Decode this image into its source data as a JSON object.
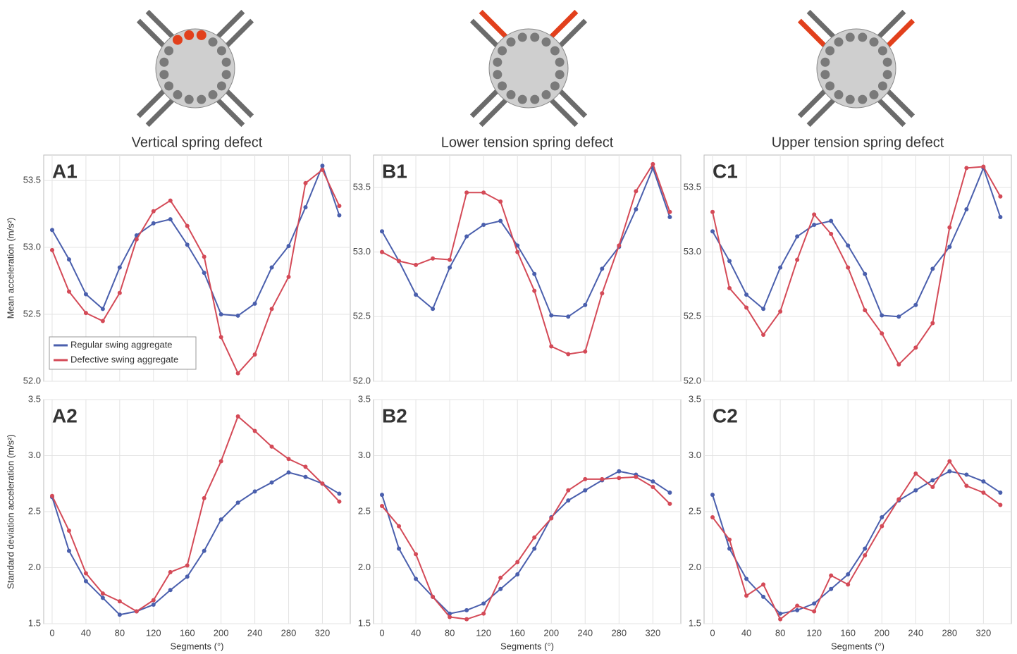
{
  "chart_data": [
    {
      "type": "line",
      "title": "Vertical spring defect",
      "panel_label": "A1",
      "ylabel": "Mean acceleration (m/s²)",
      "legend": "lower left",
      "grid": true,
      "x": [
        0,
        20,
        40,
        60,
        80,
        100,
        120,
        140,
        160,
        180,
        200,
        220,
        240,
        260,
        280,
        300,
        320,
        340
      ],
      "xlim": [
        -10,
        353
      ],
      "xticks": [
        0,
        40,
        80,
        120,
        160,
        200,
        240,
        280,
        320
      ],
      "ylim": [
        52.0,
        53.69
      ],
      "yticks": [
        {
          "value": 52,
          "label": "52.0"
        },
        52.5,
        {
          "value": 53,
          "label": "53.0"
        },
        53.5
      ],
      "series": [
        {
          "name": "Regular swing aggregate",
          "color": "#4a5fad",
          "values": [
            53.13,
            52.91,
            52.65,
            52.54,
            52.85,
            53.09,
            53.18,
            53.21,
            53.02,
            52.81,
            52.5,
            52.49,
            52.58,
            52.85,
            53.01,
            53.3,
            53.61,
            53.24
          ]
        },
        {
          "name": "Defective swing aggregate",
          "color": "#d44a57",
          "values": [
            52.98,
            52.67,
            52.51,
            52.45,
            52.66,
            53.06,
            53.27,
            53.35,
            53.16,
            52.93,
            52.33,
            52.06,
            52.2,
            52.54,
            52.78,
            53.48,
            53.58,
            53.31
          ]
        }
      ]
    },
    {
      "type": "line",
      "title": "Lower tension spring defect",
      "panel_label": "B1",
      "grid": true,
      "x": [
        0,
        20,
        40,
        60,
        80,
        100,
        120,
        140,
        160,
        180,
        200,
        220,
        240,
        260,
        280,
        300,
        320,
        340
      ],
      "xlim": [
        -10,
        353
      ],
      "xticks": [
        0,
        40,
        80,
        120,
        160,
        200,
        240,
        280,
        320
      ],
      "ylim": [
        52.0,
        53.75
      ],
      "yticks": [
        {
          "value": 52,
          "label": "52.0"
        },
        52.5,
        {
          "value": 53,
          "label": "53.0"
        },
        53.5
      ],
      "series": [
        {
          "color": "#4a5fad",
          "values": [
            53.16,
            52.93,
            52.67,
            52.56,
            52.88,
            53.12,
            53.21,
            53.24,
            53.05,
            52.83,
            52.51,
            52.5,
            52.59,
            52.87,
            53.04,
            53.33,
            53.65,
            53.27
          ]
        },
        {
          "color": "#d44a57",
          "values": [
            53.0,
            52.93,
            52.9,
            52.95,
            52.94,
            53.46,
            53.46,
            53.39,
            53.0,
            52.7,
            52.27,
            52.21,
            52.23,
            52.68,
            53.05,
            53.47,
            53.68,
            53.31
          ]
        }
      ]
    },
    {
      "type": "line",
      "title": "Upper tension spring defect",
      "panel_label": "C1",
      "grid": true,
      "x": [
        0,
        20,
        40,
        60,
        80,
        100,
        120,
        140,
        160,
        180,
        200,
        220,
        240,
        260,
        280,
        300,
        320,
        340
      ],
      "xlim": [
        -10,
        353
      ],
      "xticks": [
        0,
        40,
        80,
        120,
        160,
        200,
        240,
        280,
        320
      ],
      "ylim": [
        52.0,
        53.75
      ],
      "yticks": [
        {
          "value": 52,
          "label": "52.0"
        },
        52.5,
        {
          "value": 53,
          "label": "53.0"
        },
        53.5
      ],
      "series": [
        {
          "color": "#4a5fad",
          "values": [
            53.16,
            52.93,
            52.67,
            52.56,
            52.88,
            53.12,
            53.21,
            53.24,
            53.05,
            52.83,
            52.51,
            52.5,
            52.59,
            52.87,
            53.04,
            53.33,
            53.65,
            53.27
          ]
        },
        {
          "color": "#d44a57",
          "values": [
            53.31,
            52.72,
            52.57,
            52.36,
            52.54,
            52.94,
            53.29,
            53.14,
            52.88,
            52.55,
            52.37,
            52.13,
            52.26,
            52.45,
            53.19,
            53.65,
            53.66,
            53.43
          ]
        }
      ]
    },
    {
      "type": "line",
      "panel_label": "A2",
      "ylabel": "Standard deviation acceleration (m/s²)",
      "xlabel": "Segments (°)",
      "grid": true,
      "x": [
        0,
        20,
        40,
        60,
        80,
        100,
        120,
        140,
        160,
        180,
        200,
        220,
        240,
        260,
        280,
        300,
        320,
        340
      ],
      "xlim": [
        -10,
        353
      ],
      "xticks": [
        0,
        40,
        80,
        120,
        160,
        200,
        240,
        280,
        320
      ],
      "ylim": [
        1.5,
        3.5
      ],
      "yticks": [
        1.5,
        {
          "value": 2,
          "label": "2.0"
        },
        2.5,
        {
          "value": 3,
          "label": "3.0"
        },
        3.5
      ],
      "series": [
        {
          "color": "#4a5fad",
          "values": [
            2.63,
            2.15,
            1.88,
            1.73,
            1.58,
            1.61,
            1.67,
            1.8,
            1.92,
            2.15,
            2.43,
            2.58,
            2.68,
            2.76,
            2.85,
            2.81,
            2.75,
            2.66
          ]
        },
        {
          "color": "#d44a57",
          "values": [
            2.64,
            2.33,
            1.95,
            1.77,
            1.7,
            1.61,
            1.71,
            1.96,
            2.02,
            2.62,
            2.95,
            3.35,
            3.22,
            3.08,
            2.97,
            2.9,
            2.75,
            2.59
          ]
        }
      ]
    },
    {
      "type": "line",
      "panel_label": "B2",
      "xlabel": "Segments (°)",
      "grid": true,
      "x": [
        0,
        20,
        40,
        60,
        80,
        100,
        120,
        140,
        160,
        180,
        200,
        220,
        240,
        260,
        280,
        300,
        320,
        340
      ],
      "xlim": [
        -10,
        353
      ],
      "xticks": [
        0,
        40,
        80,
        120,
        160,
        200,
        240,
        280,
        320
      ],
      "ylim": [
        1.5,
        3.5
      ],
      "yticks": [
        1.5,
        {
          "value": 2,
          "label": "2.0"
        },
        2.5,
        {
          "value": 3,
          "label": "3.0"
        },
        3.5
      ],
      "series": [
        {
          "color": "#4a5fad",
          "values": [
            2.65,
            2.17,
            1.9,
            1.74,
            1.59,
            1.62,
            1.68,
            1.81,
            1.94,
            2.17,
            2.45,
            2.6,
            2.69,
            2.78,
            2.86,
            2.83,
            2.77,
            2.67
          ]
        },
        {
          "color": "#d44a57",
          "values": [
            2.55,
            2.37,
            2.12,
            1.74,
            1.56,
            1.54,
            1.59,
            1.91,
            2.05,
            2.27,
            2.44,
            2.69,
            2.79,
            2.79,
            2.8,
            2.81,
            2.72,
            2.57
          ]
        }
      ]
    },
    {
      "type": "line",
      "panel_label": "C2",
      "xlabel": "Segments (°)",
      "grid": true,
      "x": [
        0,
        20,
        40,
        60,
        80,
        100,
        120,
        140,
        160,
        180,
        200,
        220,
        240,
        260,
        280,
        300,
        320,
        340
      ],
      "xlim": [
        -10,
        353
      ],
      "xticks": [
        0,
        40,
        80,
        120,
        160,
        200,
        240,
        280,
        320
      ],
      "ylim": [
        1.5,
        3.5
      ],
      "yticks": [
        1.5,
        {
          "value": 2,
          "label": "2.0"
        },
        2.5,
        {
          "value": 3,
          "label": "3.0"
        },
        3.5
      ],
      "series": [
        {
          "color": "#4a5fad",
          "values": [
            2.65,
            2.17,
            1.9,
            1.74,
            1.59,
            1.62,
            1.68,
            1.81,
            1.94,
            2.17,
            2.45,
            2.6,
            2.69,
            2.78,
            2.86,
            2.83,
            2.77,
            2.67
          ]
        },
        {
          "color": "#d44a57",
          "values": [
            2.45,
            2.25,
            1.75,
            1.85,
            1.54,
            1.66,
            1.61,
            1.93,
            1.85,
            2.11,
            2.37,
            2.61,
            2.84,
            2.72,
            2.95,
            2.73,
            2.67,
            2.56
          ]
        }
      ]
    }
  ]
}
